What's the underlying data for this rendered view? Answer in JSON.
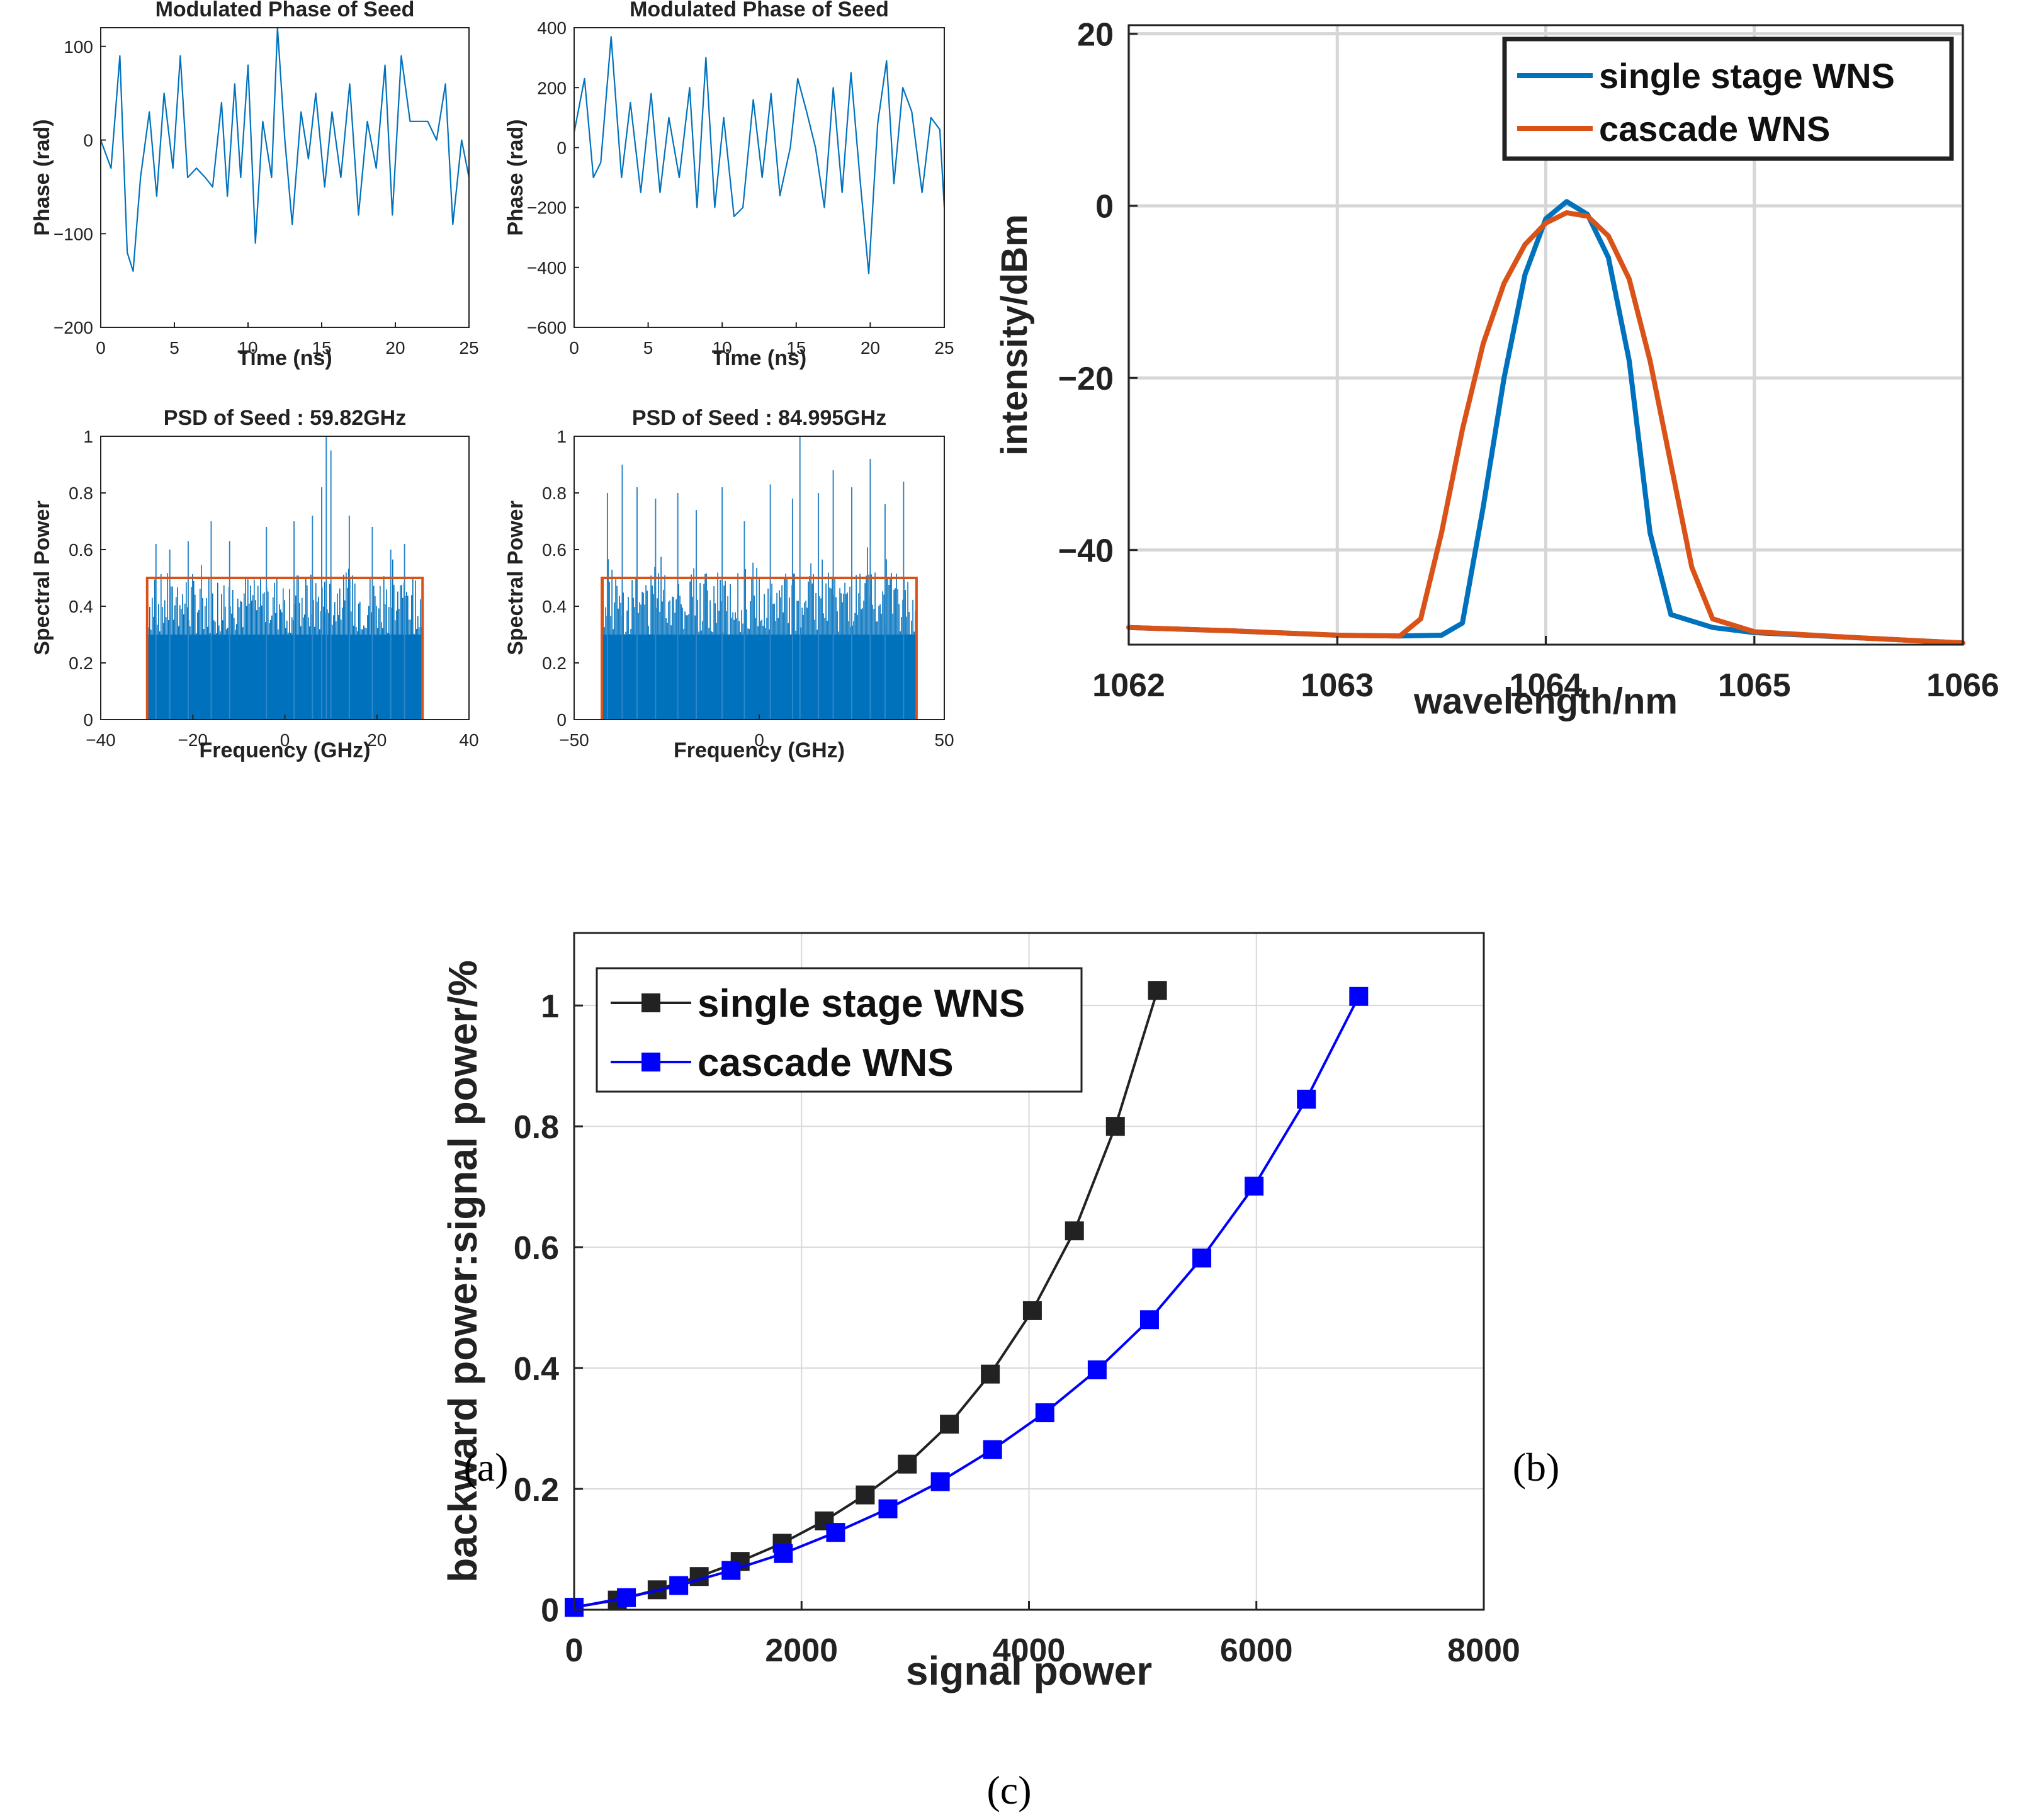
{
  "panel_labels": {
    "a": "(a)",
    "b": "(b)",
    "c": "(c)"
  },
  "colors": {
    "blue": "#0072BD",
    "orange": "#D95319",
    "black": "#222222",
    "pureBlue": "#0000FF",
    "grid": "#d6d6d6",
    "cGrid": "#d9d9d9"
  },
  "chart_data": [
    {
      "id": "a1",
      "type": "line",
      "title": "Modulated Phase of Seed",
      "xlabel": "Time (ns)",
      "ylabel": "Phase (rad)",
      "xlim": [
        0,
        25
      ],
      "ylim": [
        -200,
        120
      ],
      "xticks": [
        0,
        5,
        10,
        15,
        20,
        25
      ],
      "xtick_labels": [
        "0",
        "5",
        "10",
        "15",
        "20",
        "25"
      ],
      "yticks": [
        -200,
        -100,
        0,
        100
      ],
      "ytick_labels": [
        "−200",
        "−100",
        "0",
        "100"
      ],
      "series": [
        {
          "name": "phase",
          "points": [
            [
              0,
              0
            ],
            [
              0.7,
              -30
            ],
            [
              1.3,
              90
            ],
            [
              1.8,
              -120
            ],
            [
              2.2,
              -140
            ],
            [
              2.7,
              -40
            ],
            [
              3.3,
              30
            ],
            [
              3.8,
              -60
            ],
            [
              4.3,
              50
            ],
            [
              4.9,
              -30
            ],
            [
              5.4,
              90
            ],
            [
              5.9,
              -40
            ],
            [
              6.5,
              -30
            ],
            [
              7.1,
              -40
            ],
            [
              7.6,
              -50
            ],
            [
              8.2,
              40
            ],
            [
              8.6,
              -60
            ],
            [
              9.1,
              60
            ],
            [
              9.5,
              -40
            ],
            [
              10,
              80
            ],
            [
              10.5,
              -110
            ],
            [
              11,
              20
            ],
            [
              11.6,
              -40
            ],
            [
              12,
              120
            ],
            [
              12.5,
              0
            ],
            [
              13,
              -90
            ],
            [
              13.6,
              30
            ],
            [
              14.1,
              -20
            ],
            [
              14.6,
              50
            ],
            [
              15.2,
              -50
            ],
            [
              15.7,
              30
            ],
            [
              16.3,
              -40
            ],
            [
              16.9,
              60
            ],
            [
              17.5,
              -80
            ],
            [
              18.1,
              20
            ],
            [
              18.7,
              -30
            ],
            [
              19.3,
              80
            ],
            [
              19.8,
              -80
            ],
            [
              20.4,
              90
            ],
            [
              21,
              20
            ],
            [
              21.6,
              20
            ],
            [
              22.2,
              20
            ],
            [
              22.8,
              0
            ],
            [
              23.4,
              60
            ],
            [
              23.9,
              -90
            ],
            [
              24.5,
              0
            ],
            [
              25,
              -40
            ]
          ]
        }
      ]
    },
    {
      "id": "a2",
      "type": "line",
      "title": "Modulated Phase of Seed",
      "xlabel": "Time (ns)",
      "ylabel": "Phase (rad)",
      "xlim": [
        0,
        25
      ],
      "ylim": [
        -600,
        400
      ],
      "xticks": [
        0,
        5,
        10,
        15,
        20,
        25
      ],
      "xtick_labels": [
        "0",
        "5",
        "10",
        "15",
        "20",
        "25"
      ],
      "yticks": [
        -600,
        -400,
        -200,
        0,
        200,
        400
      ],
      "ytick_labels": [
        "−600",
        "−400",
        "−200",
        "0",
        "200",
        "400"
      ],
      "series": [
        {
          "name": "phase",
          "points": [
            [
              0,
              50
            ],
            [
              0.7,
              230
            ],
            [
              1.3,
              -100
            ],
            [
              1.8,
              -50
            ],
            [
              2.5,
              370
            ],
            [
              3.2,
              -100
            ],
            [
              3.8,
              150
            ],
            [
              4.5,
              -150
            ],
            [
              5.2,
              180
            ],
            [
              5.8,
              -150
            ],
            [
              6.4,
              100
            ],
            [
              7.1,
              -100
            ],
            [
              7.8,
              200
            ],
            [
              8.3,
              -200
            ],
            [
              8.9,
              300
            ],
            [
              9.5,
              -200
            ],
            [
              10.1,
              100
            ],
            [
              10.8,
              -230
            ],
            [
              11.4,
              -200
            ],
            [
              12.1,
              160
            ],
            [
              12.7,
              -100
            ],
            [
              13.3,
              180
            ],
            [
              13.9,
              -160
            ],
            [
              14.6,
              0
            ],
            [
              15.1,
              230
            ],
            [
              15.7,
              120
            ],
            [
              16.3,
              0
            ],
            [
              16.9,
              -200
            ],
            [
              17.5,
              200
            ],
            [
              18.1,
              -150
            ],
            [
              18.7,
              250
            ],
            [
              19.3,
              -100
            ],
            [
              19.9,
              -420
            ],
            [
              20.5,
              80
            ],
            [
              21.1,
              290
            ],
            [
              21.6,
              -120
            ],
            [
              22.2,
              200
            ],
            [
              22.8,
              120
            ],
            [
              23.5,
              -150
            ],
            [
              24.1,
              100
            ],
            [
              24.7,
              60
            ],
            [
              25,
              -200
            ]
          ]
        }
      ]
    },
    {
      "id": "a3",
      "type": "bar",
      "title": "PSD of Seed : 59.82GHz",
      "xlabel": "Frequency (GHz)",
      "ylabel": "Spectral Power",
      "xlim": [
        -40,
        40
      ],
      "ylim": [
        0,
        1
      ],
      "xticks": [
        -40,
        -20,
        0,
        20,
        40
      ],
      "xtick_labels": [
        "−40",
        "−20",
        "0",
        "20",
        "40"
      ],
      "yticks": [
        0,
        0.2,
        0.4,
        0.6,
        0.8,
        1
      ],
      "ytick_labels": [
        "0",
        "0.2",
        "0.4",
        "0.6",
        "0.8",
        "1"
      ],
      "band": [
        -29.91,
        29.91
      ],
      "band_level": 0.5,
      "peaks": [
        [
          -28,
          0.62
        ],
        [
          -25,
          0.6
        ],
        [
          -21,
          0.63
        ],
        [
          -16,
          0.7
        ],
        [
          -12,
          0.63
        ],
        [
          -4,
          0.68
        ],
        [
          2,
          0.7
        ],
        [
          6,
          0.72
        ],
        [
          8,
          0.82
        ],
        [
          9,
          1.0
        ],
        [
          10,
          0.95
        ],
        [
          14,
          0.72
        ],
        [
          19,
          0.68
        ],
        [
          23,
          0.6
        ],
        [
          26,
          0.62
        ]
      ]
    },
    {
      "id": "a4",
      "type": "bar",
      "title": "PSD of Seed : 84.995GHz",
      "xlabel": "Frequency (GHz)",
      "ylabel": "Spectral Power",
      "xlim": [
        -50,
        50
      ],
      "ylim": [
        0,
        1
      ],
      "xticks": [
        -50,
        0,
        50
      ],
      "xtick_labels": [
        "−50",
        "0",
        "50"
      ],
      "yticks": [
        0,
        0.2,
        0.4,
        0.6,
        0.8,
        1
      ],
      "ytick_labels": [
        "0",
        "0.2",
        "0.4",
        "0.6",
        "0.8",
        "1"
      ],
      "band": [
        -42.5,
        42.5
      ],
      "band_level": 0.5,
      "peaks": [
        [
          -41,
          0.8
        ],
        [
          -37,
          0.9
        ],
        [
          -33,
          0.82
        ],
        [
          -28,
          0.78
        ],
        [
          -22,
          0.8
        ],
        [
          -17,
          0.74
        ],
        [
          -10,
          0.82
        ],
        [
          -4,
          0.7
        ],
        [
          3,
          0.83
        ],
        [
          9,
          0.78
        ],
        [
          11,
          1.0
        ],
        [
          16,
          0.8
        ],
        [
          20,
          0.88
        ],
        [
          25,
          0.82
        ],
        [
          30,
          0.92
        ],
        [
          34,
          0.76
        ],
        [
          39,
          0.84
        ]
      ]
    },
    {
      "id": "b",
      "type": "line",
      "xlabel": "wavelength/nm",
      "ylabel": "intensity/dBm",
      "xlim": [
        1062,
        1066
      ],
      "ylim": [
        -51,
        21
      ],
      "xticks": [
        1062,
        1063,
        1064,
        1065,
        1066
      ],
      "xtick_labels": [
        "1062",
        "1063",
        "1064",
        "1065",
        "1066"
      ],
      "yticks": [
        -40,
        -20,
        0,
        20
      ],
      "ytick_labels": [
        "−40",
        "−20",
        "0",
        "20"
      ],
      "legend_position": "top-right",
      "series": [
        {
          "name": "single stage WNS",
          "points": [
            [
              1062,
              -49
            ],
            [
              1062.5,
              -49.4
            ],
            [
              1063,
              -49.9
            ],
            [
              1063.3,
              -50
            ],
            [
              1063.5,
              -49.9
            ],
            [
              1063.6,
              -48.5
            ],
            [
              1063.7,
              -35
            ],
            [
              1063.8,
              -20
            ],
            [
              1063.9,
              -8
            ],
            [
              1064.0,
              -1.5
            ],
            [
              1064.1,
              0.5
            ],
            [
              1064.2,
              -1
            ],
            [
              1064.3,
              -6
            ],
            [
              1064.4,
              -18
            ],
            [
              1064.5,
              -38
            ],
            [
              1064.6,
              -47.5
            ],
            [
              1064.8,
              -49
            ],
            [
              1065,
              -49.6
            ],
            [
              1065.5,
              -50.2
            ],
            [
              1066,
              -50.8
            ]
          ]
        },
        {
          "name": "cascade WNS",
          "points": [
            [
              1062,
              -49
            ],
            [
              1062.5,
              -49.4
            ],
            [
              1063,
              -49.9
            ],
            [
              1063.3,
              -50
            ],
            [
              1063.4,
              -48
            ],
            [
              1063.5,
              -38
            ],
            [
              1063.6,
              -26
            ],
            [
              1063.7,
              -16
            ],
            [
              1063.8,
              -9
            ],
            [
              1063.9,
              -4.5
            ],
            [
              1064.0,
              -2
            ],
            [
              1064.1,
              -0.8
            ],
            [
              1064.2,
              -1.2
            ],
            [
              1064.3,
              -3.5
            ],
            [
              1064.4,
              -8.5
            ],
            [
              1064.5,
              -18
            ],
            [
              1064.6,
              -30
            ],
            [
              1064.7,
              -42
            ],
            [
              1064.8,
              -48
            ],
            [
              1065,
              -49.5
            ],
            [
              1065.5,
              -50.2
            ],
            [
              1066,
              -50.8
            ]
          ]
        }
      ]
    },
    {
      "id": "c",
      "type": "line",
      "xlabel": "signal power",
      "ylabel": "backward power:signal power/%",
      "xlim": [
        0,
        8000
      ],
      "ylim": [
        0,
        1.12
      ],
      "xticks": [
        0,
        2000,
        4000,
        6000,
        8000
      ],
      "xtick_labels": [
        "0",
        "2000",
        "4000",
        "6000",
        "8000"
      ],
      "yticks": [
        0,
        0.2,
        0.4,
        0.6,
        0.8,
        1
      ],
      "ytick_labels": [
        "0",
        "0.2",
        "0.4",
        "0.6",
        "0.8",
        "1"
      ],
      "legend_position": "top-left",
      "series": [
        {
          "name": "single stage WNS",
          "points": [
            [
              0,
              0.004
            ],
            [
              380,
              0.016
            ],
            [
              730,
              0.033
            ],
            [
              1100,
              0.055
            ],
            [
              1460,
              0.08
            ],
            [
              1830,
              0.11
            ],
            [
              2200,
              0.147
            ],
            [
              2560,
              0.19
            ],
            [
              2930,
              0.241
            ],
            [
              3300,
              0.307
            ],
            [
              3660,
              0.39
            ],
            [
              4030,
              0.495
            ],
            [
              4400,
              0.627
            ],
            [
              4760,
              0.8
            ],
            [
              5130,
              1.025
            ]
          ]
        },
        {
          "name": "cascade WNS",
          "points": [
            [
              0,
              0.004
            ],
            [
              460,
              0.02
            ],
            [
              920,
              0.04
            ],
            [
              1380,
              0.065
            ],
            [
              1840,
              0.093
            ],
            [
              2300,
              0.128
            ],
            [
              2760,
              0.167
            ],
            [
              3220,
              0.212
            ],
            [
              3680,
              0.265
            ],
            [
              4140,
              0.326
            ],
            [
              4600,
              0.397
            ],
            [
              5060,
              0.48
            ],
            [
              5520,
              0.582
            ],
            [
              5980,
              0.701
            ],
            [
              6440,
              0.845
            ],
            [
              6900,
              1.015
            ]
          ]
        }
      ]
    }
  ]
}
